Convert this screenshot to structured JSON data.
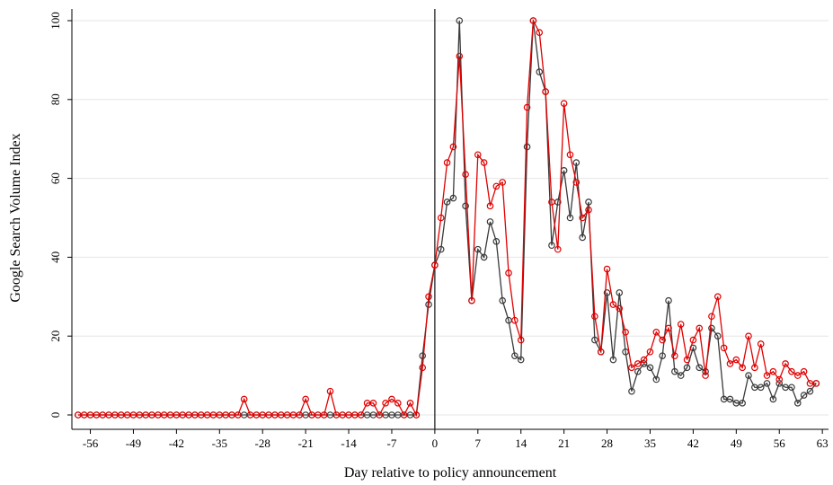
{
  "chart_data": {
    "type": "line",
    "title": "",
    "xlabel": "Day relative to policy announcement",
    "ylabel": "Google Search Volume Index",
    "xlim": [
      -59,
      64
    ],
    "ylim": [
      0,
      100
    ],
    "x_ticks": [
      -56,
      -49,
      -42,
      -35,
      -28,
      -21,
      -14,
      -7,
      0,
      7,
      14,
      21,
      28,
      35,
      42,
      49,
      56,
      63
    ],
    "y_ticks": [
      0,
      20,
      40,
      60,
      80,
      100
    ],
    "grid": "horizontal",
    "legend": "none",
    "vertical_reference_line_x": 0,
    "x_start": -58,
    "x_end": 62,
    "series": [
      {
        "color": "#3a3a3a",
        "values": [
          0,
          0,
          0,
          0,
          0,
          0,
          0,
          0,
          0,
          0,
          0,
          0,
          0,
          0,
          0,
          0,
          0,
          0,
          0,
          0,
          0,
          0,
          0,
          0,
          0,
          0,
          0,
          0,
          0,
          0,
          0,
          0,
          0,
          0,
          0,
          0,
          0,
          0,
          0,
          0,
          0,
          0,
          0,
          0,
          0,
          0,
          0,
          0,
          0,
          0,
          0,
          0,
          0,
          0,
          0,
          0,
          15,
          28,
          38,
          42,
          54,
          55,
          100,
          53,
          29,
          42,
          40,
          49,
          44,
          29,
          24,
          15,
          14,
          68,
          100,
          87,
          82,
          43,
          54,
          62,
          50,
          64,
          45,
          54,
          19,
          16,
          31,
          14,
          31,
          16,
          6,
          11,
          13,
          12,
          9,
          15,
          29,
          11,
          10,
          12,
          17,
          12,
          11,
          22,
          20,
          4,
          4,
          3,
          3,
          10,
          7,
          7,
          8,
          4,
          8,
          7,
          7,
          3,
          5,
          6,
          8
        ]
      },
      {
        "color": "#e00000",
        "values": [
          0,
          0,
          0,
          0,
          0,
          0,
          0,
          0,
          0,
          0,
          0,
          0,
          0,
          0,
          0,
          0,
          0,
          0,
          0,
          0,
          0,
          0,
          0,
          0,
          0,
          0,
          0,
          4,
          0,
          0,
          0,
          0,
          0,
          0,
          0,
          0,
          0,
          4,
          0,
          0,
          0,
          6,
          0,
          0,
          0,
          0,
          0,
          3,
          3,
          0,
          3,
          4,
          3,
          0,
          3,
          0,
          12,
          30,
          38,
          50,
          64,
          68,
          91,
          61,
          29,
          66,
          64,
          53,
          58,
          59,
          36,
          24,
          19,
          78,
          100,
          97,
          82,
          54,
          42,
          79,
          66,
          59,
          50,
          52,
          25,
          16,
          37,
          28,
          27,
          21,
          12,
          13,
          14,
          16,
          21,
          19,
          22,
          15,
          23,
          14,
          19,
          22,
          10,
          25,
          30,
          17,
          13,
          14,
          12,
          20,
          12,
          18,
          10,
          11,
          9,
          13,
          11,
          10,
          11,
          8,
          8
        ]
      }
    ]
  }
}
